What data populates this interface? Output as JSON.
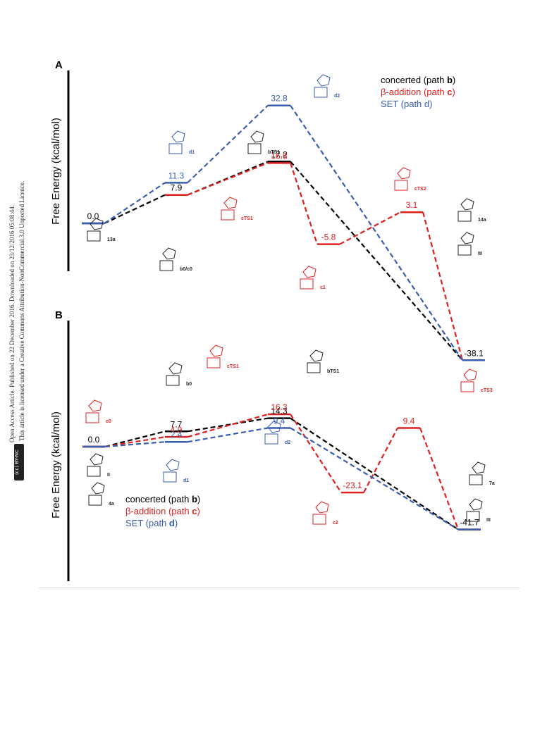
{
  "side_notes": {
    "line1": "Open Access Article. Published on 22 December 2016. Downloaded on 23/12/2016 05:08:44.",
    "line2": "This article is licensed under a Creative Commons Attribution-NonCommercial 3.0 Unported Licence.",
    "badge": "(cc) BY-NC"
  },
  "colors": {
    "concerted": "#000000",
    "beta": "#e02020",
    "set": "#3a5db0"
  },
  "chart_data": [
    {
      "type": "line",
      "panel": "A",
      "ylabel": "Free Energy (kcal/mol)",
      "legend": [
        {
          "text": "concerted (path ",
          "bold": "b",
          "end": ")",
          "color": "#000000"
        },
        {
          "text": "β-addition (path ",
          "bold": "c",
          "end": ")",
          "color": "#e02020"
        },
        {
          "text": "SET (path d)",
          "bold": "",
          "end": "",
          "color": "#3a5db0"
        }
      ],
      "ylim": [
        -45,
        38
      ],
      "series": [
        {
          "key": "concerted",
          "color": "#000000",
          "values": [
            0.0,
            7.9,
            17.2,
            -38.1
          ],
          "positions": [
            0,
            1,
            2.2,
            4.5
          ]
        },
        {
          "key": "beta",
          "color": "#e02020",
          "values": [
            7.9,
            16.8,
            -5.8,
            3.1,
            -38.1
          ],
          "positions": [
            1,
            2.2,
            3.0,
            3.8,
            4.5
          ]
        },
        {
          "key": "set",
          "color": "#3a5db0",
          "values": [
            0.0,
            11.3,
            32.8,
            -38.1
          ],
          "positions": [
            0,
            1,
            2.2,
            4.5
          ]
        }
      ],
      "labels": [
        {
          "text": "0.0",
          "color": "#000000"
        },
        {
          "text": "7.9",
          "color": "#000000"
        },
        {
          "text": "17.2",
          "color": "#000000"
        },
        {
          "text": "-38.1",
          "color": "#000000"
        },
        {
          "text": "16.8",
          "color": "#e02020"
        },
        {
          "text": "-5.8",
          "color": "#e02020"
        },
        {
          "text": "3.1",
          "color": "#e02020"
        },
        {
          "text": "11.3",
          "color": "#3a5db0"
        },
        {
          "text": "32.8",
          "color": "#3a5db0"
        }
      ],
      "species": [
        "13a",
        "b0/c0",
        "d1",
        "bTS1",
        "d2",
        "cTS1",
        "c1",
        "cTS2",
        "14a",
        "III"
      ]
    },
    {
      "type": "line",
      "panel": "B",
      "ylabel": "Free Energy (kcal/mol)",
      "legend": [
        {
          "text": "concerted (path ",
          "bold": "b",
          "end": ")",
          "color": "#000000"
        },
        {
          "text": "β-addition (path ",
          "bold": "c",
          "end": ")",
          "color": "#e02020"
        },
        {
          "text": "SET (path ",
          "bold": "d",
          "end": ")",
          "color": "#3a5db0"
        }
      ],
      "ylim": [
        -48,
        22
      ],
      "series": [
        {
          "key": "concerted",
          "color": "#000000",
          "values": [
            0.0,
            7.7,
            14.3,
            -41.7
          ],
          "positions": [
            0,
            1,
            2.2,
            4.5
          ]
        },
        {
          "key": "beta",
          "color": "#e02020",
          "values": [
            0.0,
            4.9,
            16.3,
            -23.1,
            9.4,
            -41.7
          ],
          "positions": [
            0,
            1,
            2.2,
            3.0,
            3.7,
            4.5
          ]
        },
        {
          "key": "set",
          "color": "#3a5db0",
          "values": [
            0.0,
            2.4,
            9.4,
            -41.7
          ],
          "positions": [
            0,
            1,
            2.2,
            4.5
          ]
        }
      ],
      "labels": [
        {
          "text": "0.0",
          "color": "#000000"
        },
        {
          "text": "7.7",
          "color": "#000000"
        },
        {
          "text": "14.3",
          "color": "#000000"
        },
        {
          "text": "-41.7",
          "color": "#000000"
        },
        {
          "text": "4.9",
          "color": "#e02020"
        },
        {
          "text": "16.3",
          "color": "#e02020"
        },
        {
          "text": "-23.1",
          "color": "#e02020"
        },
        {
          "text": "9.4",
          "color": "#e02020"
        },
        {
          "text": "2.4",
          "color": "#3a5db0"
        },
        {
          "text": "9.4",
          "color": "#3a5db0"
        }
      ],
      "species": [
        "4a",
        "II",
        "c0",
        "b0",
        "d1",
        "cTS1",
        "bTS1",
        "d2",
        "c2",
        "cTS3",
        "7a",
        "III"
      ]
    }
  ]
}
